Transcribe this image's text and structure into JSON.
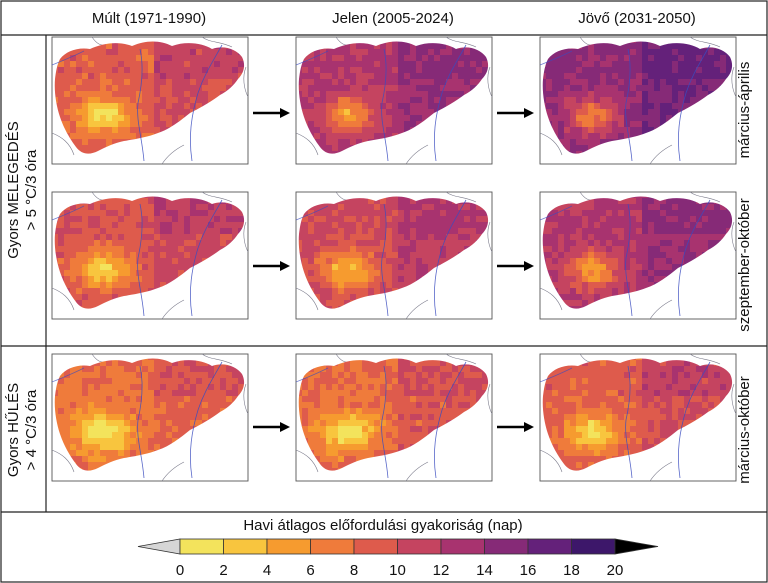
{
  "columns": [
    {
      "label": "Múlt (1971-1990)"
    },
    {
      "label": "Jelen (2005-2024)"
    },
    {
      "label": "Jövő (2031-2050)"
    }
  ],
  "row_groups": [
    {
      "label_line1": "Gyors MELEGEDÉS",
      "label_line2": "> 5 °C/3 óra"
    },
    {
      "label_line1": "Gyors HŰLÉS",
      "label_line2": "> 4 °C/3 óra"
    }
  ],
  "row_seasons": [
    "március-április",
    "szeptember-október",
    "március-október"
  ],
  "colorbar": {
    "title": "Havi átlagos előfordulási gyakoriság (nap)",
    "ticks": [
      "0",
      "2",
      "4",
      "6",
      "8",
      "10",
      "12",
      "14",
      "16",
      "18",
      "20"
    ],
    "colors": [
      "#f3e35c",
      "#f8c53e",
      "#f69b2f",
      "#ef7b3b",
      "#de5b4c",
      "#c54460",
      "#a8336f",
      "#862a77",
      "#64217a",
      "#3d176a"
    ],
    "under_color": "#d6d6d6",
    "over_color": "#000000"
  },
  "map_panels": [
    {
      "row": 0,
      "col": 0,
      "mean_frequency": 9.0
    },
    {
      "row": 0,
      "col": 1,
      "mean_frequency": 12.5
    },
    {
      "row": 0,
      "col": 2,
      "mean_frequency": 14.5
    },
    {
      "row": 1,
      "col": 0,
      "mean_frequency": 9.5
    },
    {
      "row": 1,
      "col": 1,
      "mean_frequency": 10.5
    },
    {
      "row": 1,
      "col": 2,
      "mean_frequency": 12.5
    },
    {
      "row": 2,
      "col": 0,
      "mean_frequency": 7.5
    },
    {
      "row": 2,
      "col": 1,
      "mean_frequency": 8.0
    },
    {
      "row": 2,
      "col": 2,
      "mean_frequency": 9.0
    }
  ]
}
